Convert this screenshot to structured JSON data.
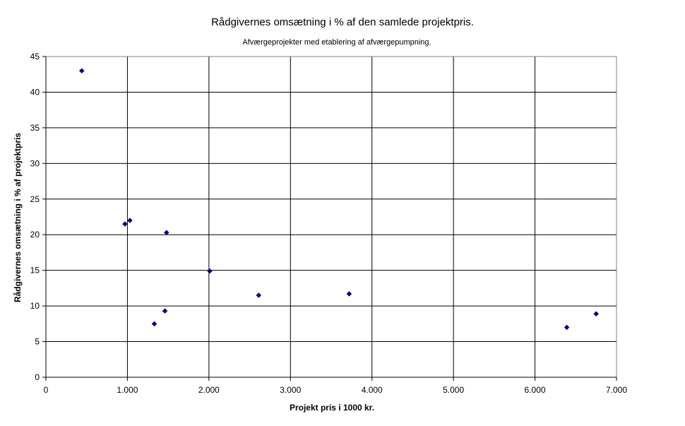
{
  "chart_data": {
    "type": "scatter",
    "title": "Rådgivernes omsætning i % af den samlede projektpris.",
    "subtitle": "Afværgeprojekter med etablering af afværgepumpning.",
    "xlabel": "Projekt pris i 1000 kr.",
    "ylabel": "Rådgivernes omsætning i % af projektpris",
    "xlim": [
      0,
      7000
    ],
    "ylim": [
      0,
      45
    ],
    "x_ticks": [
      0,
      1000,
      2000,
      3000,
      4000,
      5000,
      6000,
      7000
    ],
    "x_tick_labels": [
      "0",
      "1.000",
      "2.000",
      "3.000",
      "4.000",
      "5.000",
      "6.000",
      "7.000"
    ],
    "y_ticks": [
      0,
      5,
      10,
      15,
      20,
      25,
      30,
      35,
      40,
      45
    ],
    "y_tick_labels": [
      "0",
      "5",
      "10",
      "15",
      "20",
      "25",
      "30",
      "35",
      "40",
      "45"
    ],
    "grid": true,
    "marker_color": "#000080",
    "series": [
      {
        "x": [
          440,
          970,
          1030,
          1330,
          1460,
          1480,
          2010,
          2610,
          3720,
          6390,
          6750
        ],
        "y": [
          43.0,
          21.5,
          22.0,
          7.5,
          9.3,
          20.3,
          14.9,
          11.5,
          11.7,
          7.0,
          8.9
        ]
      }
    ]
  }
}
